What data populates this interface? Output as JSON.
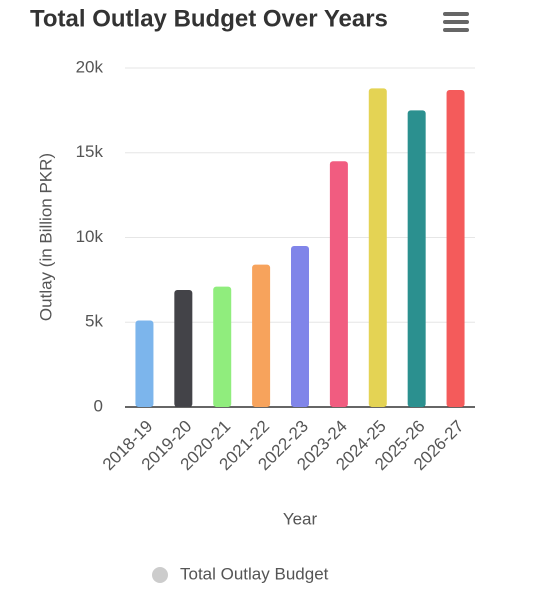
{
  "chart_data": {
    "type": "bar",
    "title": "Total Outlay Budget Over Years",
    "x_label": "Year",
    "y_label": "Outlay (in Billion PKR)",
    "categories": [
      "2018-19",
      "2019-20",
      "2020-21",
      "2021-22",
      "2022-23",
      "2023-24",
      "2024-25",
      "2025-26",
      "2026-27"
    ],
    "series": [
      {
        "name": "Total Outlay Budget",
        "color": "#cccccc",
        "values": [
          5100,
          6900,
          7100,
          8400,
          9500,
          14500,
          18800,
          17500,
          18700
        ],
        "colors": [
          "#7cb5ec",
          "#434348",
          "#90ed7d",
          "#f7a35c",
          "#8085e9",
          "#f15c80",
          "#e4d354",
          "#2b908f",
          "#f45b5b"
        ]
      }
    ],
    "ylim": [
      0,
      20000
    ],
    "yticks": [
      0,
      {
        "value": 5000,
        "label": "5k"
      },
      {
        "value": 10000,
        "label": "10k"
      },
      {
        "value": 15000,
        "label": "15k"
      },
      {
        "value": 20000,
        "label": "20k"
      }
    ],
    "grid": true
  }
}
